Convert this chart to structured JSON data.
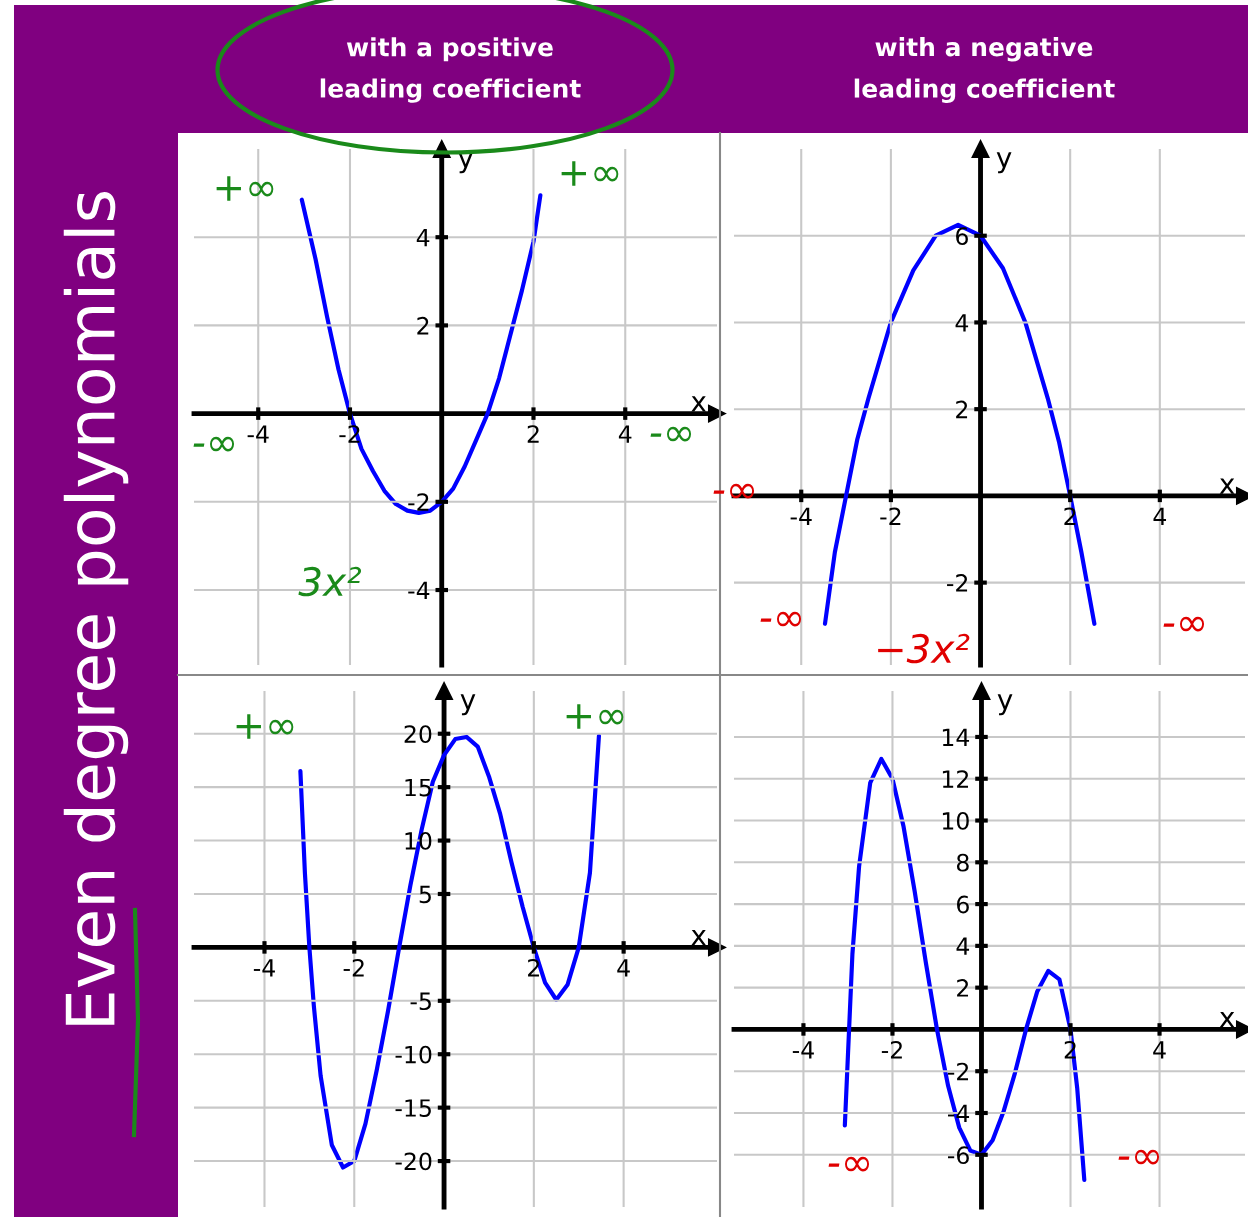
{
  "chart_data": [
    {
      "type": "line",
      "title": "with a positive\nleading coefficient",
      "xlabel": "x",
      "ylabel": "y",
      "grid": true,
      "xlim": [
        -5.4,
        6
      ],
      "ylim": [
        -5.7,
        6
      ],
      "xticks": [
        -4,
        -2,
        2,
        4
      ],
      "yticks": [
        -4,
        -2,
        2,
        4
      ],
      "series": [
        {
          "color": "#0000ff",
          "x": [
            -3.05,
            -2.75,
            -2.5,
            -2.25,
            -2,
            -1.75,
            -1.5,
            -1.25,
            -1,
            -0.75,
            -0.5,
            -0.25,
            0,
            0.25,
            0.5,
            0.75,
            1,
            1.25,
            1.5,
            1.75,
            2,
            2.15
          ],
          "values": [
            4.85,
            3.5,
            2.2,
            1.0,
            0,
            -0.8,
            -1.3,
            -1.75,
            -2.05,
            -2.2,
            -2.25,
            -2.2,
            -2.0,
            -1.7,
            -1.2,
            -0.6,
            0,
            0.8,
            1.8,
            2.8,
            3.9,
            4.95
          ]
        }
      ],
      "annotations": [
        "Even degree polynomials",
        "+∞",
        "+∞",
        "-∞",
        "-∞",
        "3x²"
      ]
    },
    {
      "type": "line",
      "title": "with a negative\nleading coefficient",
      "xlabel": "x",
      "ylabel": "y",
      "grid": true,
      "xlim": [
        -5.5,
        5.9
      ],
      "ylim": [
        -3.9,
        8
      ],
      "xticks": [
        -4,
        -2,
        2,
        4
      ],
      "yticks": [
        -2,
        2,
        4,
        6
      ],
      "series": [
        {
          "color": "#0000ff",
          "x": [
            -3.47,
            -3.25,
            -3,
            -2.75,
            -2.5,
            -2,
            -1.5,
            -1,
            -0.5,
            0,
            0.5,
            1,
            1.5,
            1.75,
            2,
            2.25,
            2.54
          ],
          "values": [
            -2.95,
            -1.3,
            0,
            1.3,
            2.25,
            4,
            5.2,
            6,
            6.25,
            6,
            5.25,
            4,
            2.25,
            1.25,
            0,
            -1.3,
            -2.95
          ]
        }
      ],
      "annotations": [
        "-∞",
        "-∞",
        "-∞",
        "−3x²"
      ]
    },
    {
      "type": "line",
      "xlabel": "x",
      "ylabel": "y",
      "grid": true,
      "xlim": [
        -5.57,
        6.08
      ],
      "ylim": [
        -24.3,
        24
      ],
      "xticks": [
        -4,
        -2,
        2,
        4
      ],
      "yticks": [
        -20,
        -15,
        -10,
        -5,
        5,
        10,
        15,
        20
      ],
      "series": [
        {
          "color": "#0000ff",
          "x": [
            -3.2,
            -3.1,
            -3,
            -2.9,
            -2.75,
            -2.5,
            -2.25,
            -2,
            -1.75,
            -1.5,
            -1.25,
            -1,
            -0.75,
            -0.5,
            -0.25,
            0,
            0.25,
            0.5,
            0.75,
            1,
            1.25,
            1.5,
            1.75,
            2,
            2.25,
            2.5,
            2.75,
            3,
            3.25,
            3.45
          ],
          "values": [
            16.5,
            7,
            0,
            -5.5,
            -12,
            -18.5,
            -20.6,
            -20,
            -16.5,
            -11.5,
            -6,
            0,
            5.8,
            11,
            15.5,
            18,
            19.5,
            19.7,
            18.8,
            16,
            12.5,
            8,
            3.8,
            0,
            -3.3,
            -4.9,
            -3.5,
            0,
            7,
            19.8
          ]
        }
      ],
      "annotations": [
        "+∞",
        "+∞"
      ]
    },
    {
      "type": "line",
      "xlabel": "x",
      "ylabel": "y",
      "grid": true,
      "xlim": [
        -5.56,
        5.92
      ],
      "ylim": [
        -8.5,
        16.2
      ],
      "xticks": [
        -4,
        -2,
        2,
        4
      ],
      "yticks": [
        -6,
        -4,
        -2,
        2,
        4,
        6,
        8,
        10,
        12,
        14
      ],
      "series": [
        {
          "color": "#0000ff",
          "x": [
            -3.07,
            -2.9,
            -2.75,
            -2.5,
            -2.25,
            -2,
            -1.75,
            -1.5,
            -1.25,
            -1,
            -0.75,
            -0.5,
            -0.25,
            0,
            0.25,
            0.5,
            0.75,
            1,
            1.25,
            1.5,
            1.75,
            2,
            2.15,
            2.31
          ],
          "values": [
            -4.6,
            3.6,
            7.8,
            11.8,
            12.95,
            12,
            9.7,
            6.6,
            3.2,
            0,
            -2.7,
            -4.7,
            -5.8,
            -6,
            -5.3,
            -3.9,
            -2.1,
            0,
            1.8,
            2.8,
            2.4,
            0,
            -2.8,
            -7.2
          ]
        }
      ],
      "annotations": [
        "-∞",
        "-∞"
      ]
    }
  ]
}
